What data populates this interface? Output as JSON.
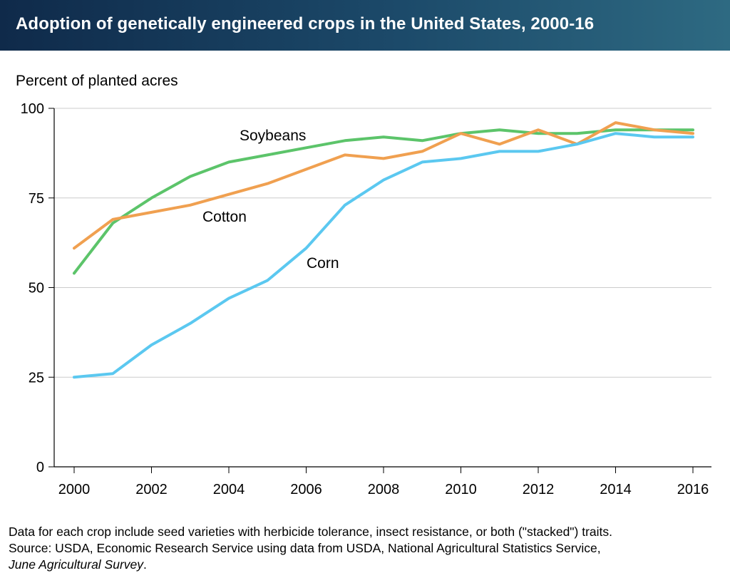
{
  "title": "Adoption of genetically engineered crops in the United States, 2000-16",
  "chart_data": {
    "type": "line",
    "ylabel": "Percent of planted acres",
    "xlabel": "",
    "ylim": [
      0,
      100
    ],
    "xlim": [
      2000,
      2016
    ],
    "y_ticks": [
      "0",
      "25",
      "50",
      "75",
      "100"
    ],
    "x_ticks": [
      "2000",
      "2002",
      "2004",
      "2006",
      "2008",
      "2010",
      "2012",
      "2014",
      "2016"
    ],
    "grid": "horizontal",
    "x": [
      2000,
      2001,
      2002,
      2003,
      2004,
      2005,
      2006,
      2007,
      2008,
      2009,
      2010,
      2011,
      2012,
      2013,
      2014,
      2015,
      2016
    ],
    "series": [
      {
        "name": "Soybeans",
        "color": "#5cc46a",
        "values": [
          54,
          68,
          75,
          81,
          85,
          87,
          89,
          91,
          92,
          91,
          93,
          94,
          93,
          93,
          94,
          94,
          94
        ]
      },
      {
        "name": "Cotton",
        "color": "#f0a050",
        "values": [
          61,
          69,
          71,
          73,
          76,
          79,
          83,
          87,
          86,
          88,
          93,
          90,
          94,
          90,
          96,
          94,
          93
        ]
      },
      {
        "name": "Corn",
        "color": "#5bc8f0",
        "values": [
          25,
          26,
          34,
          40,
          47,
          52,
          61,
          73,
          80,
          85,
          86,
          88,
          88,
          90,
          93,
          92,
          92
        ]
      }
    ]
  },
  "notes": {
    "line1": "Data for each crop include seed varieties with herbicide tolerance, insect resistance, or both (\"stacked\") traits.",
    "line2": "Source: USDA, Economic Research Service using data from USDA, National Agricultural Statistics Service,",
    "line3": "June Agricultural Survey",
    "line3_end": "."
  }
}
